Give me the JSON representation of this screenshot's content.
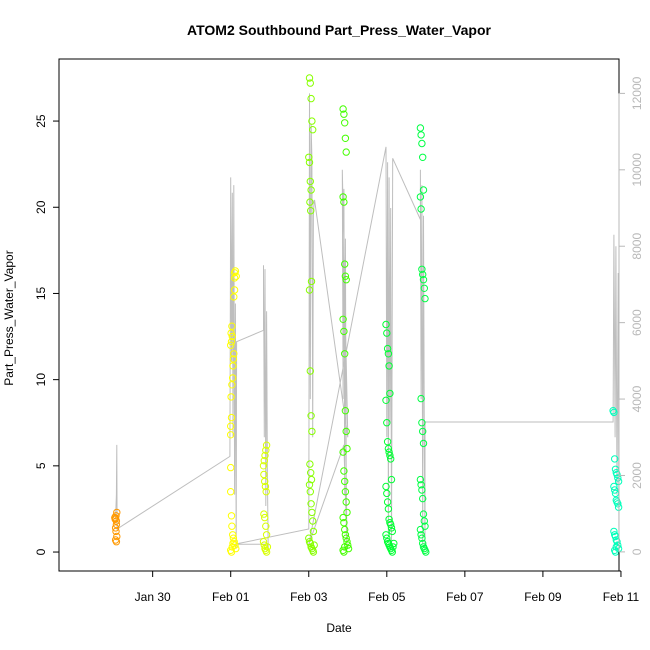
{
  "chart_data": {
    "type": "scatter",
    "title": "ATOM2 Southbound Part_Press_Water_Vapor",
    "xlabel": "Date",
    "ylabel": "Part_Press_Water_Vapor",
    "x_axis": {
      "type": "date",
      "range_days": [
        -2.4,
        11.95
      ],
      "ticks": [
        {
          "label": "Jan 30",
          "day": 0
        },
        {
          "label": "Feb 01",
          "day": 2
        },
        {
          "label": "Feb 03",
          "day": 4
        },
        {
          "label": "Feb 05",
          "day": 6
        },
        {
          "label": "Feb 07",
          "day": 8
        },
        {
          "label": "Feb 09",
          "day": 10
        },
        {
          "label": "Feb 11",
          "day": 12
        }
      ]
    },
    "ylim": [
      -1.1,
      28.6
    ],
    "y_ticks": [
      0,
      5,
      10,
      15,
      20,
      25
    ],
    "y2_axis": {
      "label": "",
      "lim": [
        -500,
        12900
      ],
      "ticks": [
        0,
        2000,
        4000,
        6000,
        8000,
        10000,
        12000
      ],
      "color": "#b8b8b8"
    },
    "grey_line_series": {
      "axis": "right",
      "color": "#bebebe",
      "note_axis": "secondary (right) axis",
      "points": [
        [
          -0.95,
          900
        ],
        [
          -0.93,
          1500
        ],
        [
          -0.92,
          2800
        ],
        [
          -0.91,
          600
        ],
        [
          1.98,
          2500
        ],
        [
          2.0,
          9800
        ],
        [
          2.02,
          5000
        ],
        [
          2.04,
          9400
        ],
        [
          2.06,
          3000
        ],
        [
          2.08,
          9600
        ],
        [
          2.1,
          1500
        ],
        [
          2.12,
          6500
        ],
        [
          2.14,
          100
        ],
        [
          2.15,
          5500
        ],
        [
          2.84,
          5800
        ],
        [
          2.84,
          7500
        ],
        [
          2.86,
          3000
        ],
        [
          2.88,
          7400
        ],
        [
          2.9,
          1200
        ],
        [
          2.92,
          6300
        ],
        [
          2.94,
          2000
        ],
        [
          2.96,
          100
        ],
        [
          2.96,
          200
        ],
        [
          2.1,
          200
        ],
        [
          4.0,
          600
        ],
        [
          4.02,
          12000
        ],
        [
          4.04,
          4000
        ],
        [
          4.06,
          11200
        ],
        [
          4.08,
          10300
        ],
        [
          4.1,
          3000
        ],
        [
          4.12,
          8800
        ],
        [
          4.14,
          9200
        ],
        [
          4.15,
          9200
        ],
        [
          5.0,
          3000
        ],
        [
          4.86,
          10000
        ],
        [
          4.88,
          4000
        ],
        [
          4.9,
          9500
        ],
        [
          4.92,
          1500
        ],
        [
          4.94,
          8200
        ],
        [
          4.96,
          2000
        ],
        [
          4.98,
          100
        ],
        [
          4.9,
          2800
        ],
        [
          4.0,
          200
        ],
        [
          5.98,
          10600
        ],
        [
          6.0,
          3000
        ],
        [
          6.02,
          10200
        ],
        [
          6.04,
          500
        ],
        [
          6.06,
          9800
        ],
        [
          6.08,
          3400
        ],
        [
          6.1,
          9000
        ],
        [
          6.12,
          100
        ],
        [
          6.15,
          10300
        ],
        [
          6.86,
          8700
        ],
        [
          6.86,
          10000
        ],
        [
          6.88,
          4000
        ],
        [
          6.9,
          9600
        ],
        [
          6.92,
          200
        ],
        [
          6.94,
          8800
        ],
        [
          6.96,
          3000
        ],
        [
          6.98,
          100
        ],
        [
          6.98,
          3400
        ],
        [
          11.8,
          3400
        ],
        [
          11.82,
          8300
        ],
        [
          11.85,
          3000
        ],
        [
          11.87,
          8000
        ],
        [
          11.9,
          1500
        ],
        [
          11.93,
          7300
        ],
        [
          11.95,
          0
        ]
      ]
    },
    "series": [
      {
        "color": "#ff9900",
        "x": [
          -0.97,
          -0.96,
          -0.95,
          -0.94,
          -0.93,
          -0.92,
          -0.95,
          -0.94,
          -0.93,
          -0.92,
          -0.95,
          -0.93
        ],
        "y": [
          2.0,
          1.9,
          1.95,
          2.1,
          1.8,
          2.3,
          1.4,
          1.2,
          1.6,
          0.9,
          0.7,
          0.6
        ]
      },
      {
        "color": "#ffff00",
        "x": [
          2.0,
          2.0,
          2.02,
          2.01,
          2.03,
          2.05,
          2.06,
          2.07,
          2.08,
          2.0,
          2.02,
          2.04,
          2.01,
          2.03,
          2.1,
          2.1,
          2.12,
          2.14,
          2.0,
          2.0,
          2.02,
          2.03,
          2.05,
          2.07,
          2.09,
          2.11,
          2.13,
          2.0,
          2.02,
          2.04,
          2.06,
          2.08,
          2.1
        ],
        "y": [
          6.8,
          7.3,
          7.8,
          9.0,
          9.7,
          10.1,
          10.8,
          11.2,
          11.5,
          12.0,
          12.2,
          12.5,
          12.7,
          13.1,
          15.9,
          16.2,
          16.3,
          16.0,
          3.5,
          4.9,
          2.1,
          1.5,
          1.0,
          0.8,
          0.6,
          0.4,
          0.2,
          0.1,
          0.0,
          0.3,
          0.5,
          14.8,
          15.2
        ]
      },
      {
        "color": "#d8ff00",
        "x": [
          2.84,
          2.86,
          2.88,
          2.9,
          2.92,
          2.85,
          2.87,
          2.89,
          2.91,
          2.85,
          2.87,
          2.9,
          2.92,
          2.84,
          2.86,
          2.88,
          2.9,
          2.92,
          2.94
        ],
        "y": [
          5.0,
          5.3,
          5.6,
          5.9,
          6.2,
          4.5,
          4.1,
          3.8,
          3.5,
          2.2,
          2.0,
          1.5,
          1.0,
          0.6,
          0.4,
          0.2,
          0.1,
          0.0,
          0.3
        ]
      },
      {
        "color": "#88ff00",
        "x": [
          4.02,
          4.04,
          4.06,
          4.08,
          4.1,
          4.0,
          4.02,
          4.04,
          4.06,
          4.03,
          4.05,
          4.07,
          4.02,
          4.04,
          4.06,
          4.08,
          4.03,
          4.05,
          4.07,
          4.02,
          4.04,
          4.06,
          4.08,
          4.1,
          4.12,
          4.0,
          4.02,
          4.04,
          4.06,
          4.08,
          4.1,
          4.12,
          4.14
        ],
        "y": [
          27.5,
          27.2,
          26.3,
          25.0,
          24.5,
          22.9,
          22.6,
          21.5,
          21.0,
          20.3,
          19.8,
          15.7,
          15.2,
          10.5,
          7.9,
          7.0,
          5.1,
          4.6,
          4.2,
          3.9,
          3.5,
          2.8,
          2.3,
          1.8,
          1.2,
          0.8,
          0.6,
          0.5,
          0.3,
          0.2,
          0.1,
          0.0,
          0.4
        ]
      },
      {
        "color": "#44ff00",
        "x": [
          4.88,
          4.9,
          4.92,
          4.94,
          4.96,
          4.88,
          4.9,
          4.92,
          4.94,
          4.96,
          4.88,
          4.9,
          4.92,
          4.94,
          4.96,
          4.98,
          4.88,
          4.9,
          4.92,
          4.94,
          4.96,
          4.98,
          4.88,
          4.9,
          4.92,
          4.94,
          4.96,
          4.98,
          5.0,
          5.02,
          4.88,
          4.9,
          4.92
        ],
        "y": [
          25.7,
          25.4,
          24.9,
          24.0,
          23.2,
          20.6,
          20.3,
          16.7,
          16.0,
          15.8,
          13.5,
          12.8,
          11.5,
          8.2,
          7.0,
          6.0,
          5.8,
          4.7,
          4.1,
          3.5,
          2.9,
          2.3,
          2.0,
          1.7,
          1.3,
          1.0,
          0.8,
          0.6,
          0.4,
          0.2,
          0.1,
          0.0,
          0.3
        ]
      },
      {
        "color": "#00ff33",
        "x": [
          5.98,
          6.0,
          6.02,
          6.04,
          6.06,
          6.08,
          5.98,
          6.0,
          6.02,
          6.04,
          6.06,
          6.08,
          6.1,
          6.12,
          5.98,
          6.0,
          6.02,
          6.04,
          6.06,
          6.08,
          6.1,
          6.12,
          6.14,
          5.98,
          6.0,
          6.02,
          6.04,
          6.06,
          6.08,
          6.1,
          6.12,
          6.14,
          6.16,
          6.18
        ],
        "y": [
          13.2,
          12.7,
          11.8,
          11.5,
          10.8,
          9.2,
          8.8,
          7.5,
          6.4,
          6.0,
          5.8,
          5.6,
          5.4,
          4.2,
          3.8,
          3.4,
          2.9,
          2.5,
          1.9,
          1.7,
          1.6,
          1.4,
          1.2,
          1.0,
          0.8,
          0.6,
          0.5,
          0.4,
          0.3,
          0.2,
          0.1,
          0.0,
          0.3,
          0.5
        ]
      },
      {
        "color": "#00ff44",
        "x": [
          6.86,
          6.88,
          6.9,
          6.92,
          6.94,
          6.86,
          6.88,
          6.9,
          6.92,
          6.94,
          6.96,
          6.98,
          6.88,
          6.9,
          6.92,
          6.94,
          6.86,
          6.88,
          6.9,
          6.92,
          6.94,
          6.96,
          6.98,
          6.86,
          6.88,
          6.9,
          6.92,
          6.94,
          6.96,
          6.98,
          7.0
        ],
        "y": [
          24.6,
          24.2,
          23.7,
          22.9,
          21.0,
          20.6,
          19.9,
          16.4,
          16.1,
          15.8,
          15.3,
          14.7,
          8.9,
          7.5,
          7.0,
          6.3,
          4.2,
          3.9,
          3.6,
          3.1,
          2.2,
          1.8,
          1.5,
          1.3,
          1.0,
          0.8,
          0.5,
          0.3,
          0.2,
          0.1,
          0.0
        ]
      },
      {
        "color": "#00ffbb",
        "x": [
          11.8,
          11.82,
          11.84,
          11.86,
          11.88,
          11.9,
          11.92,
          11.94,
          11.82,
          11.84,
          11.86,
          11.88,
          11.9,
          11.92,
          11.94,
          11.82,
          11.84,
          11.86,
          11.88,
          11.9,
          11.92,
          11.94,
          11.84,
          11.86,
          11.88
        ],
        "y": [
          8.2,
          8.1,
          5.4,
          4.8,
          4.6,
          4.5,
          4.3,
          4.1,
          3.8,
          3.6,
          3.4,
          3.0,
          2.9,
          2.8,
          2.6,
          1.2,
          1.0,
          0.9,
          0.7,
          0.6,
          0.4,
          0.2,
          0.1,
          0.0,
          0.3
        ]
      }
    ]
  }
}
